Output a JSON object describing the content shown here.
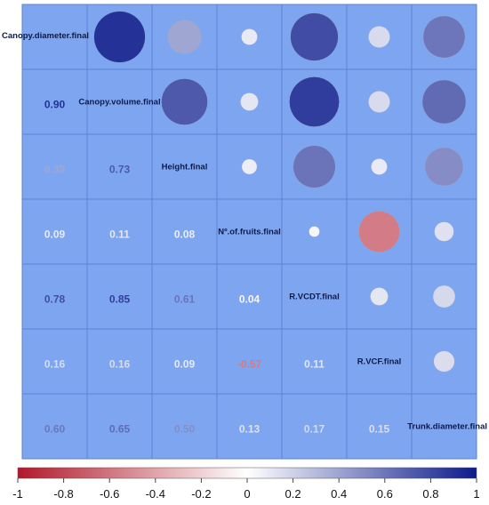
{
  "chart_data": {
    "type": "heatmap",
    "subtype": "correlation-matrix",
    "variables": [
      "Canopy.diameter.final",
      "Canopy.volume.final",
      "Height.final",
      "Nº.of.fruits.final",
      "R.VCDT.final",
      "R.VCF.final",
      "Trunk.diameter.final"
    ],
    "matrix": [
      [
        1.0,
        0.9,
        0.39,
        0.09,
        0.78,
        0.16,
        0.6
      ],
      [
        0.9,
        1.0,
        0.73,
        0.11,
        0.85,
        0.16,
        0.65
      ],
      [
        0.39,
        0.73,
        1.0,
        0.08,
        0.61,
        0.09,
        0.5
      ],
      [
        0.09,
        0.11,
        0.08,
        1.0,
        0.04,
        -0.57,
        0.13
      ],
      [
        0.78,
        0.85,
        0.61,
        0.04,
        1.0,
        0.11,
        0.17
      ],
      [
        0.16,
        0.16,
        0.09,
        -0.57,
        0.11,
        1.0,
        0.15
      ],
      [
        0.6,
        0.65,
        0.5,
        0.13,
        0.17,
        0.15,
        1.0
      ]
    ],
    "lower_triangle_labels": [
      [
        "0.90"
      ],
      [
        "0.39",
        "0.73"
      ],
      [
        "0.09",
        "0.11",
        "0.08"
      ],
      [
        "0.78",
        "0.85",
        "0.61",
        "0.04"
      ],
      [
        "0.16",
        "0.16",
        "0.09",
        "-0.57",
        "0.11"
      ],
      [
        "0.60",
        "0.65",
        "0.50",
        "0.13",
        "0.17",
        "0.15"
      ]
    ],
    "upper_triangle": "circles",
    "lower_triangle": "numbers",
    "diagonal": "variable names",
    "colorbar": {
      "range": [
        -1,
        1
      ],
      "ticks": [
        "-1",
        "-0.8",
        "-0.6",
        "-0.4",
        "-0.2",
        "0",
        "0.2",
        "0.4",
        "0.6",
        "0.8",
        "1"
      ],
      "placement": "bottom"
    },
    "colors": {
      "negative": "#b2182b",
      "neutral": "#ffffff",
      "positive": "#0c1b8c",
      "cell_background": "#7ea6f0"
    }
  }
}
